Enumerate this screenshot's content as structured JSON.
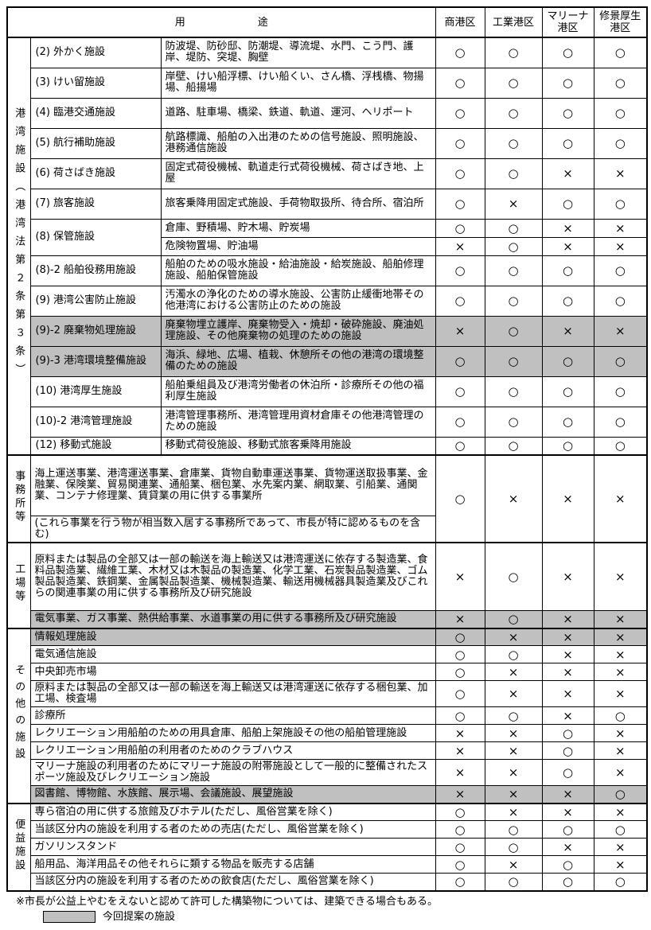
{
  "colors": {
    "shade": "#c0c0c0"
  },
  "header": {
    "usage": "用　　　　　　　途",
    "districts": [
      "商港区",
      "工業港区",
      "マリーナ港区",
      "修景厚生港区"
    ]
  },
  "marks_legend": {
    "allowed": "○",
    "not_allowed": "×"
  },
  "sections": [
    {
      "id": "port-facilities",
      "label": "港湾施設（港湾法第２条第３条）",
      "rows": [
        {
          "name": "(2) 外かく施設",
          "desc": "防波堤、防砂邸、防潮堤、導流堤、水門、こう門、護岸、堤防、突堤、胸壁",
          "marks": [
            "○",
            "○",
            "○",
            "○"
          ]
        },
        {
          "name": "(3) けい留施設",
          "desc": "岸壁、けい船浮標、けい船くい、さん橋、浮桟橋、物揚場、船揚場",
          "marks": [
            "○",
            "○",
            "○",
            "○"
          ]
        },
        {
          "name": "(4) 臨港交通施設",
          "desc": "道路、駐車場、橋梁、鉄道、軌道、運河、ヘリポート",
          "marks": [
            "○",
            "○",
            "○",
            "○"
          ]
        },
        {
          "name": "(5) 航行補助施設",
          "desc": "航路標識、船舶の入出港のための信号施設、照明施設、港務通信施設",
          "marks": [
            "○",
            "○",
            "○",
            "○"
          ]
        },
        {
          "name": "(6) 荷さばき施設",
          "desc": "固定式荷役機械、軌道走行式荷役機械、荷さばき地、上屋",
          "marks": [
            "○",
            "○",
            "×",
            "×"
          ]
        },
        {
          "name": "(7) 旅客施設",
          "desc": "旅客乗降用固定式施設、手荷物取扱所、待合所、宿泊所",
          "marks": [
            "○",
            "×",
            "○",
            "○"
          ]
        },
        {
          "name": "(8) 保管施設",
          "subrows": [
            {
              "desc": "倉庫、野積場、貯木場、貯炭場",
              "marks": [
                "○",
                "○",
                "×",
                "×"
              ]
            },
            {
              "desc": "危険物置場、貯油場",
              "marks": [
                "×",
                "○",
                "×",
                "×"
              ]
            }
          ]
        },
        {
          "name": "(8)-2 船舶役務用施設",
          "desc": "船舶のための吸水施設・給油施設・給炭施設、船舶修理施設、船舶保管施設",
          "marks": [
            "○",
            "○",
            "○",
            "○"
          ]
        },
        {
          "name": "(9) 港湾公害防止施設",
          "desc": "汚濁水の浄化のための導水施設、公害防止緩衝地帯その他港湾における公害防止のための施設",
          "marks": [
            "○",
            "○",
            "○",
            "○"
          ]
        },
        {
          "name": "(9)-2 廃棄物処理施設",
          "desc": "廃棄物埋立護岸、廃棄物受入・焼却・破砕施設、廃油処理施設、その他廃棄物の処理のための施設",
          "marks": [
            "×",
            "○",
            "×",
            "×"
          ],
          "shaded": true
        },
        {
          "name": "(9)-3 港湾環境整備施設",
          "desc": "海浜、緑地、広場、植栽、休憩所その他の港湾の環境整備のための施設",
          "marks": [
            "○",
            "○",
            "○",
            "○"
          ],
          "shaded": true
        },
        {
          "name": "(10) 港湾厚生施設",
          "desc": "船舶乗組員及び港湾労働者の休泊所・診療所その他の福利厚生施設",
          "marks": [
            "○",
            "○",
            "○",
            "○"
          ]
        },
        {
          "name": "(10)-2 港湾管理施設",
          "desc": "港湾管理事務所、港湾管理用資材倉庫その他港湾管理のための施設",
          "marks": [
            "○",
            "○",
            "○",
            "○"
          ]
        },
        {
          "name": "(12) 移動式施設",
          "desc": "移動式荷役施設、移動式旅客乗降用施設",
          "marks": [
            "○",
            "○",
            "○",
            "○"
          ]
        }
      ]
    },
    {
      "id": "offices",
      "label": "事務所等",
      "rows": [
        {
          "desc_parts": [
            "海上運送事業、港湾運送事業、倉庫業、貨物自動車運送事業、貨物運送取扱事業、金融業、保険業、貿易関連業、通船業、梱包業、水先案内業、網取業、引船業、通関業、コンテナ修理業、賃貸業の用に供する事業所",
            "(これら事業を行う物が相当数入居する事務所であって、市長が特に認めるものを含む)"
          ],
          "marks": [
            "○",
            "×",
            "×",
            "×"
          ]
        }
      ]
    },
    {
      "id": "factories",
      "label": "工場等",
      "rows": [
        {
          "desc": "原料または製品の全部又は一部の輸送を海上輸送又は港湾運送に依存する製造業、食料品製造業、繊維工業、木材又は木製品の製造業、化学工業、石炭製品製造業、ゴム製品製造業、鉄鋼業、金属製品製造業、機械製造業、輸送用機械器具製造業及びこれらの関連事業の用に供する事務所及び研究施設",
          "marks": [
            "×",
            "○",
            "×",
            "×"
          ]
        },
        {
          "desc": "電気事業、ガス事業、熱供給事業、水道事業の用に供する事務所及び研究施設",
          "marks": [
            "×",
            "○",
            "×",
            "×"
          ],
          "shaded": true
        }
      ]
    },
    {
      "id": "other-facilities",
      "label": "その他の施設",
      "rows": [
        {
          "desc": "情報処理施設",
          "marks": [
            "○",
            "×",
            "×",
            "×"
          ],
          "shaded": true
        },
        {
          "desc": "電気通信施設",
          "marks": [
            "○",
            "○",
            "×",
            "×"
          ]
        },
        {
          "desc": "中央卸売市場",
          "marks": [
            "○",
            "×",
            "×",
            "×"
          ]
        },
        {
          "desc": "原料または製品の全部又は一部の輸送を海上輸送又は港湾運送に依存する梱包業、加工場、検査場",
          "marks": [
            "○",
            "×",
            "×",
            "×"
          ]
        },
        {
          "desc": "診療所",
          "marks": [
            "○",
            "○",
            "×",
            "○"
          ]
        },
        {
          "desc": "レクリエーション用船舶のための用具倉庫、船舶上架施設その他の船舶管理施設",
          "marks": [
            "×",
            "×",
            "○",
            "×"
          ]
        },
        {
          "desc": "レクリエーション用船舶の利用者のためのクラブハウス",
          "marks": [
            "×",
            "×",
            "○",
            "×"
          ]
        },
        {
          "desc": "マリーナ施設の利用者のためにマリーナ施設の附帯施設として一般的に整備されたスポーツ施設及びレクリエーション施設",
          "marks": [
            "×",
            "×",
            "○",
            "×"
          ]
        },
        {
          "desc": "図書館、博物館、水族館、展示場、会議施設、展望施設",
          "marks": [
            "×",
            "×",
            "×",
            "○"
          ],
          "shaded": true
        }
      ]
    },
    {
      "id": "convenience-facilities",
      "label": "便益施設",
      "rows": [
        {
          "desc": "専ら宿泊の用に供する旅館及びホテル(ただし、風俗営業を除く)",
          "marks": [
            "○",
            "×",
            "×",
            "×"
          ]
        },
        {
          "desc": "当該区分内の施設を利用する者のための売店(ただし、風俗営業を除く)",
          "marks": [
            "○",
            "○",
            "○",
            "○"
          ]
        },
        {
          "desc": "ガソリンスタンド",
          "marks": [
            "○",
            "○",
            "×",
            "×"
          ]
        },
        {
          "desc": "船用品、海洋用品その他それらに類する物品を販売する店舗",
          "marks": [
            "○",
            "×",
            "○",
            "×"
          ]
        },
        {
          "desc": "当該区分内の施設を利用する者のための飲食店(ただし、風俗営業を除く)",
          "marks": [
            "○",
            "○",
            "○",
            "○"
          ]
        }
      ]
    }
  ],
  "footnotes": {
    "note": "※市長が公益上やむをえないと認めて許可した構築物については、建築できる場合もある。",
    "legend": "今回提案の施設"
  }
}
